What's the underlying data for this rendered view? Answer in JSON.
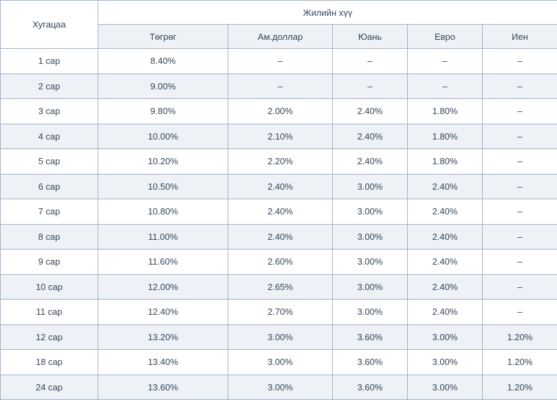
{
  "colors": {
    "text": "#33475b",
    "border": "#9fb2c8",
    "row_alt_bg": "#eef1f6",
    "row_bg": "#ffffff"
  },
  "table": {
    "duration_header": "Хугацаа",
    "group_header": "Жилийн хүү",
    "currency_headers": [
      "Төгрөг",
      "Ам.доллар",
      "Юань",
      "Евро",
      "Иен"
    ],
    "empty_value": "–",
    "rows": [
      {
        "term": "1 сар",
        "values": [
          "8.40%",
          "–",
          "–",
          "–",
          "–"
        ]
      },
      {
        "term": "2 сар",
        "values": [
          "9.00%",
          "–",
          "–",
          "–",
          "–"
        ]
      },
      {
        "term": "3 сар",
        "values": [
          "9.80%",
          "2.00%",
          "2.40%",
          "1.80%",
          "–"
        ]
      },
      {
        "term": "4 сар",
        "values": [
          "10.00%",
          "2.10%",
          "2.40%",
          "1.80%",
          "–"
        ]
      },
      {
        "term": "5 сар",
        "values": [
          "10.20%",
          "2.20%",
          "2.40%",
          "1.80%",
          "–"
        ]
      },
      {
        "term": "6 сар",
        "values": [
          "10.50%",
          "2.40%",
          "3.00%",
          "2.40%",
          "–"
        ]
      },
      {
        "term": "7 сар",
        "values": [
          "10.80%",
          "2.40%",
          "3.00%",
          "2.40%",
          "–"
        ]
      },
      {
        "term": "8 сар",
        "values": [
          "11.00%",
          "2.40%",
          "3.00%",
          "2.40%",
          "–"
        ]
      },
      {
        "term": "9 сар",
        "values": [
          "11.60%",
          "2.60%",
          "3.00%",
          "2.40%",
          "–"
        ]
      },
      {
        "term": "10 сар",
        "values": [
          "12.00%",
          "2.65%",
          "3.00%",
          "2.40%",
          "–"
        ]
      },
      {
        "term": "11 сар",
        "values": [
          "12.40%",
          "2.70%",
          "3.00%",
          "2.40%",
          "–"
        ]
      },
      {
        "term": "12 сар",
        "values": [
          "13.20%",
          "3.00%",
          "3.60%",
          "3.00%",
          "1.20%"
        ]
      },
      {
        "term": "18 сар",
        "values": [
          "13.40%",
          "3.00%",
          "3.60%",
          "3.00%",
          "1.20%"
        ]
      },
      {
        "term": "24 сар",
        "values": [
          "13.60%",
          "3.00%",
          "3.60%",
          "3.00%",
          "1.20%"
        ]
      }
    ]
  }
}
